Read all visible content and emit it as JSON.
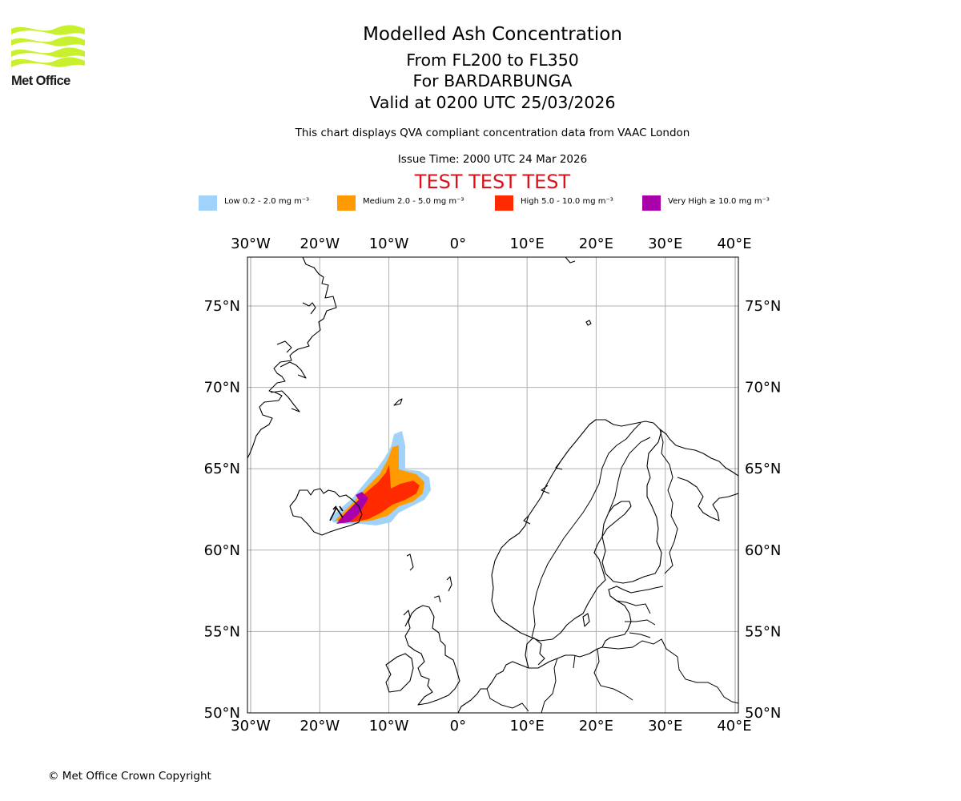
{
  "logo": {
    "text": "Met Office",
    "colors": {
      "waves": "#c8f02e",
      "text": "#1a1a1a"
    }
  },
  "titles": {
    "main": "Modelled Ash Concentration",
    "levels": "From FL200 to FL350",
    "volcano": "For BARDARBUNGA",
    "valid": "Valid at 0200 UTC 25/03/2026",
    "subtitle": "This chart displays QVA compliant concentration data from VAAC London",
    "issue_time": "Issue Time: 2000 UTC 24 Mar 2026",
    "test_banner": "TEST TEST TEST"
  },
  "legend": [
    {
      "label": "Low 0.2 - 2.0 mg m⁻³",
      "color": "#a0d2fa"
    },
    {
      "label": "Medium 2.0 - 5.0 mg m⁻³",
      "color": "#ff9a00"
    },
    {
      "label": "High 5.0 - 10.0 mg m⁻³",
      "color": "#ff2a00"
    },
    {
      "label": "Very High ≥ 10.0 mg m⁻³",
      "color": "#aa00aa"
    }
  ],
  "map": {
    "projection": "plate carree",
    "lon_range": [
      -30,
      40
    ],
    "lat_range": [
      50,
      78
    ],
    "lon_ticks": [
      {
        "value": -30,
        "label": "30°W"
      },
      {
        "value": -20,
        "label": "20°W"
      },
      {
        "value": -10,
        "label": "10°W"
      },
      {
        "value": 0,
        "label": "0°"
      },
      {
        "value": 10,
        "label": "10°E"
      },
      {
        "value": 20,
        "label": "20°E"
      },
      {
        "value": 30,
        "label": "30°E"
      },
      {
        "value": 40,
        "label": "40°E"
      }
    ],
    "lat_ticks": [
      {
        "value": 50,
        "label": "50°N"
      },
      {
        "value": 55,
        "label": "55°N"
      },
      {
        "value": 60,
        "label": "60°N"
      },
      {
        "value": 65,
        "label": "65°N"
      },
      {
        "value": 70,
        "label": "70°N"
      },
      {
        "value": 75,
        "label": "75°N"
      }
    ],
    "ash_levels": [
      "low",
      "medium",
      "high",
      "very_high"
    ],
    "grid_color": "#b0b0b0",
    "coast_color": "#000000"
  },
  "copyright": "© Met Office Crown Copyright"
}
